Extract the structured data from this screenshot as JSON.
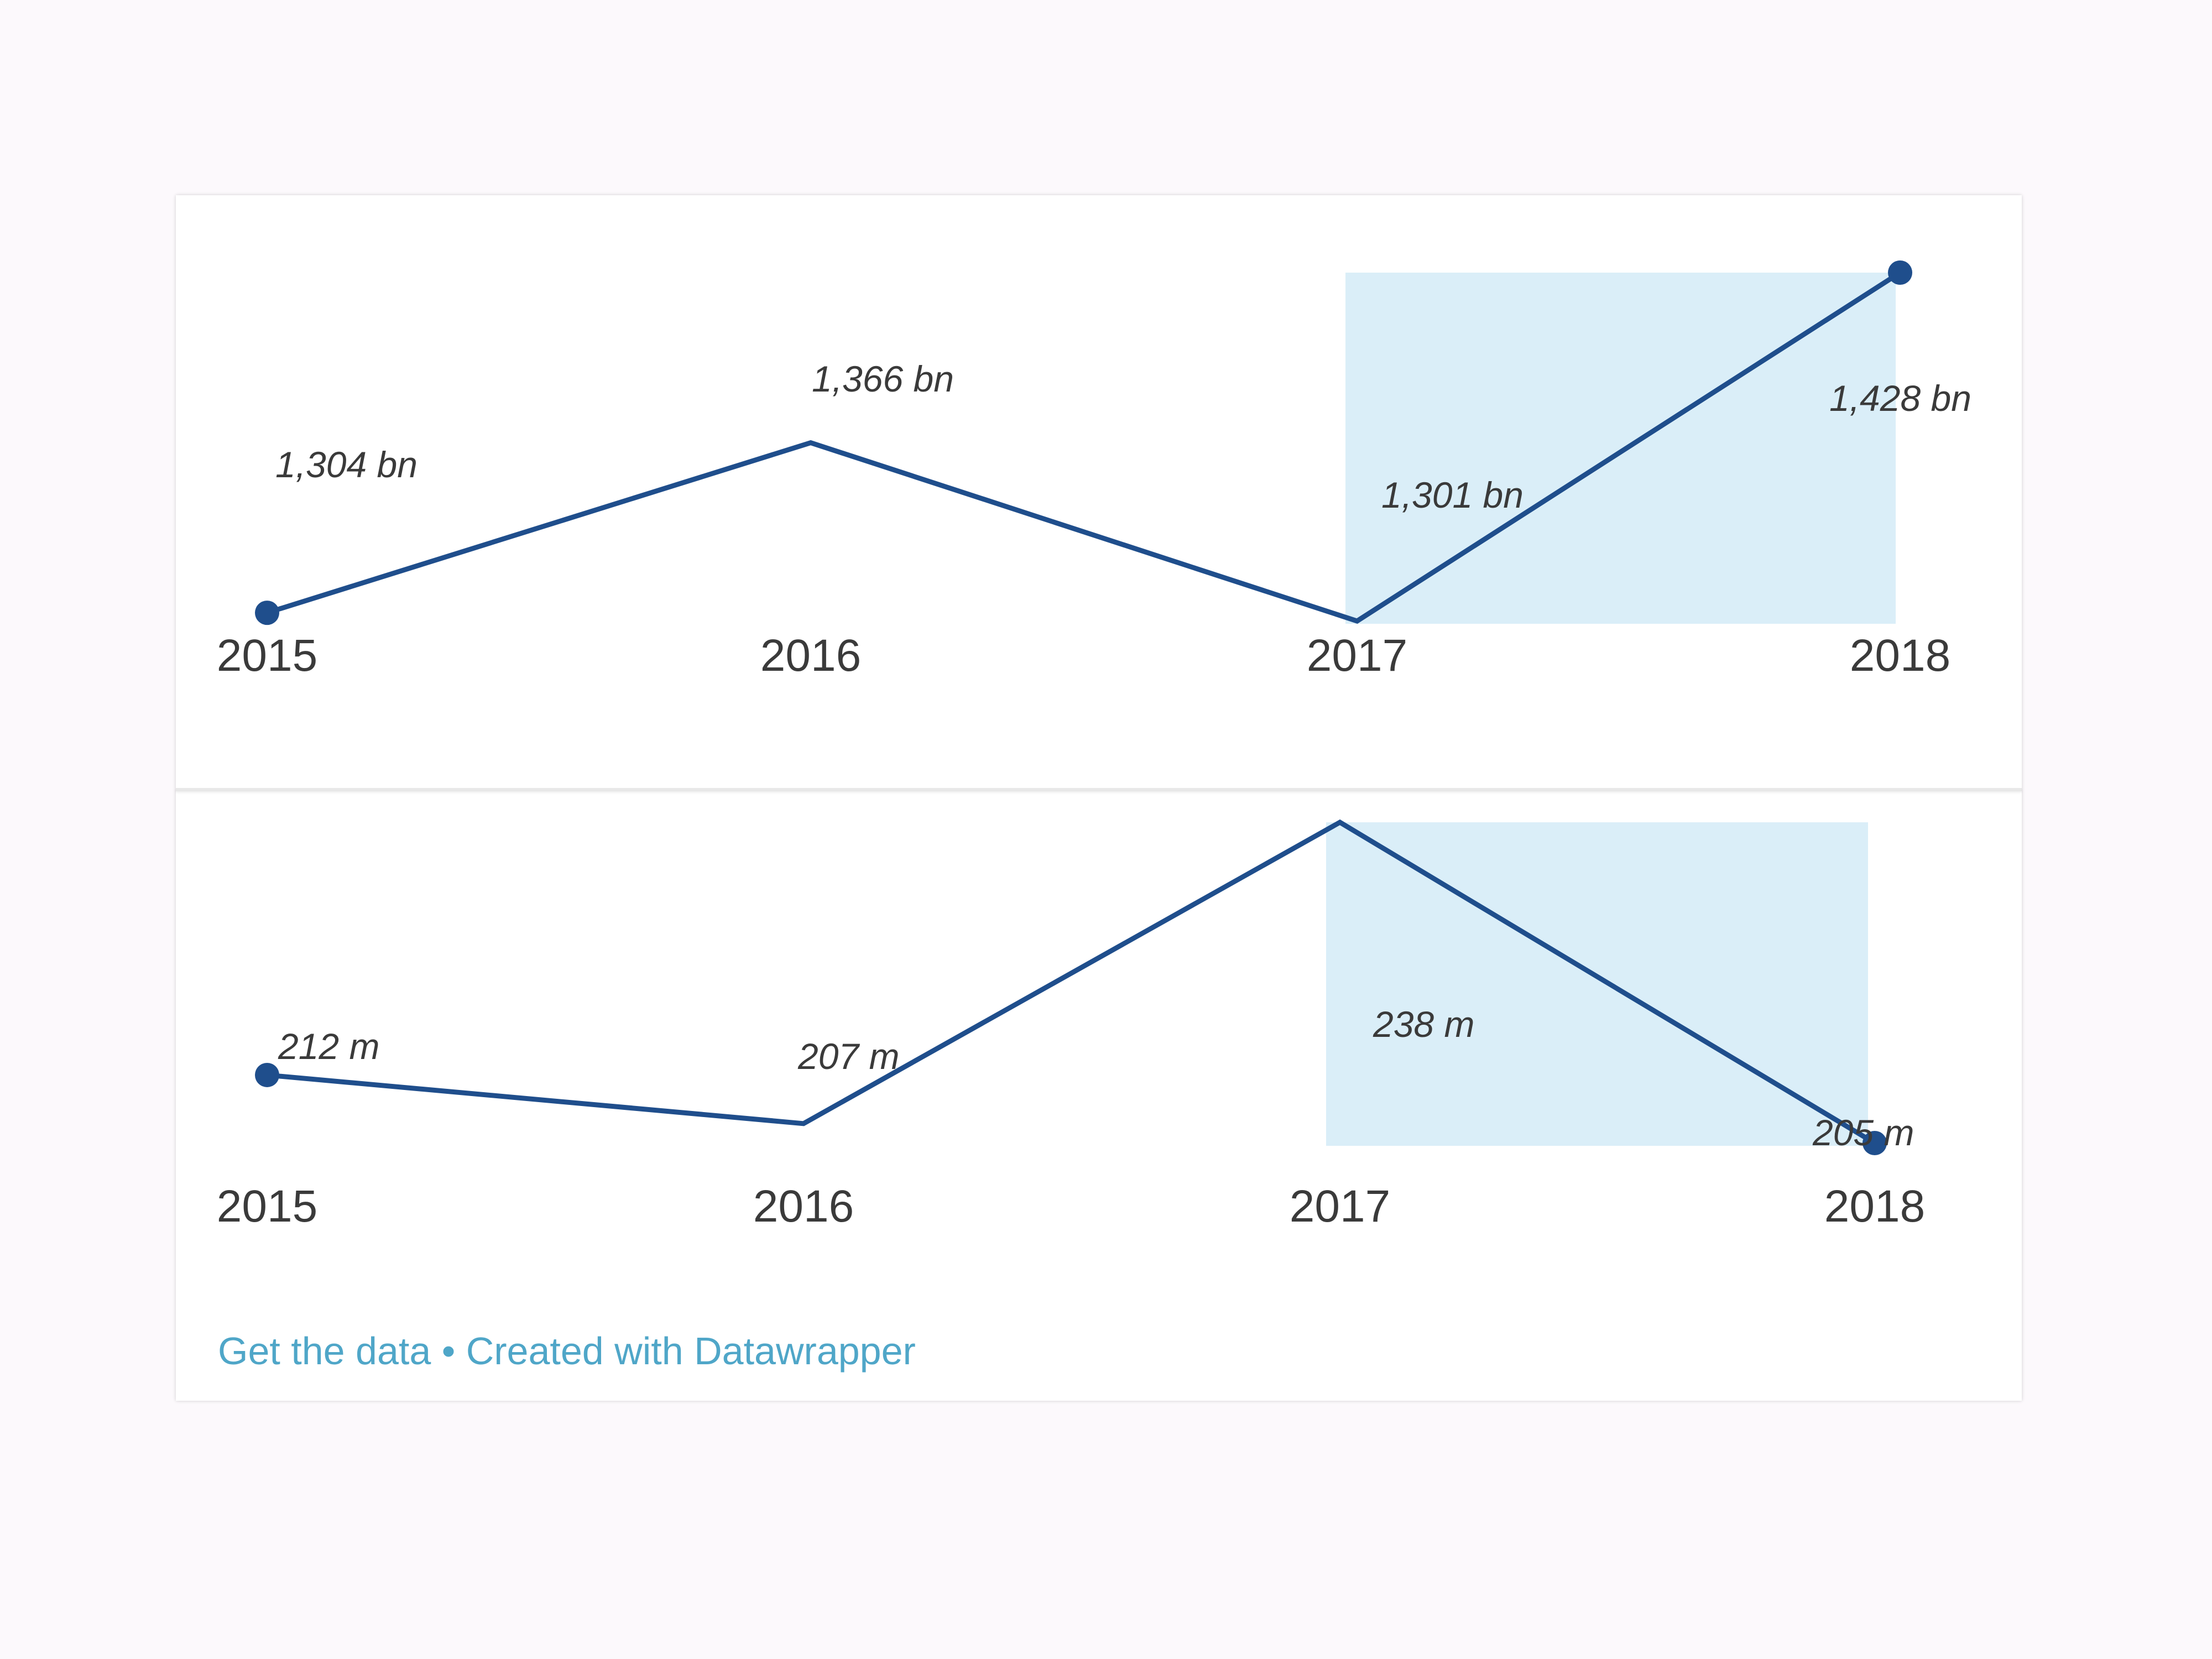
{
  "chart_data": [
    {
      "type": "line",
      "x": [
        "2015",
        "2016",
        "2017",
        "2018"
      ],
      "values": [
        1304,
        1366,
        1301,
        1428
      ],
      "labels": [
        "1,304 bn",
        "1,366 bn",
        "1,301 bn",
        "1,428 bn"
      ],
      "ylim": [
        1301,
        1428
      ],
      "highlight_range": [
        "2017",
        "2018"
      ],
      "markers_at": [
        "2015",
        "2018"
      ],
      "grid": false
    },
    {
      "type": "line",
      "x": [
        "2015",
        "2016",
        "2017",
        "2018"
      ],
      "values": [
        212,
        207,
        238,
        205
      ],
      "labels": [
        "212 m",
        "207 m",
        "238 m",
        "205 m"
      ],
      "ylim": [
        205,
        238
      ],
      "highlight_range": [
        "2017",
        "2018"
      ],
      "markers_at": [
        "2015",
        "2018"
      ],
      "grid": false
    }
  ],
  "colors": {
    "line": "#1f4e8c",
    "highlight": "#daeef8",
    "link": "#4fa6c8",
    "text": "#3a3a3a"
  },
  "footer": {
    "get_data": "Get the data",
    "separator": " • ",
    "created_with": "Created with Datawrapper"
  }
}
